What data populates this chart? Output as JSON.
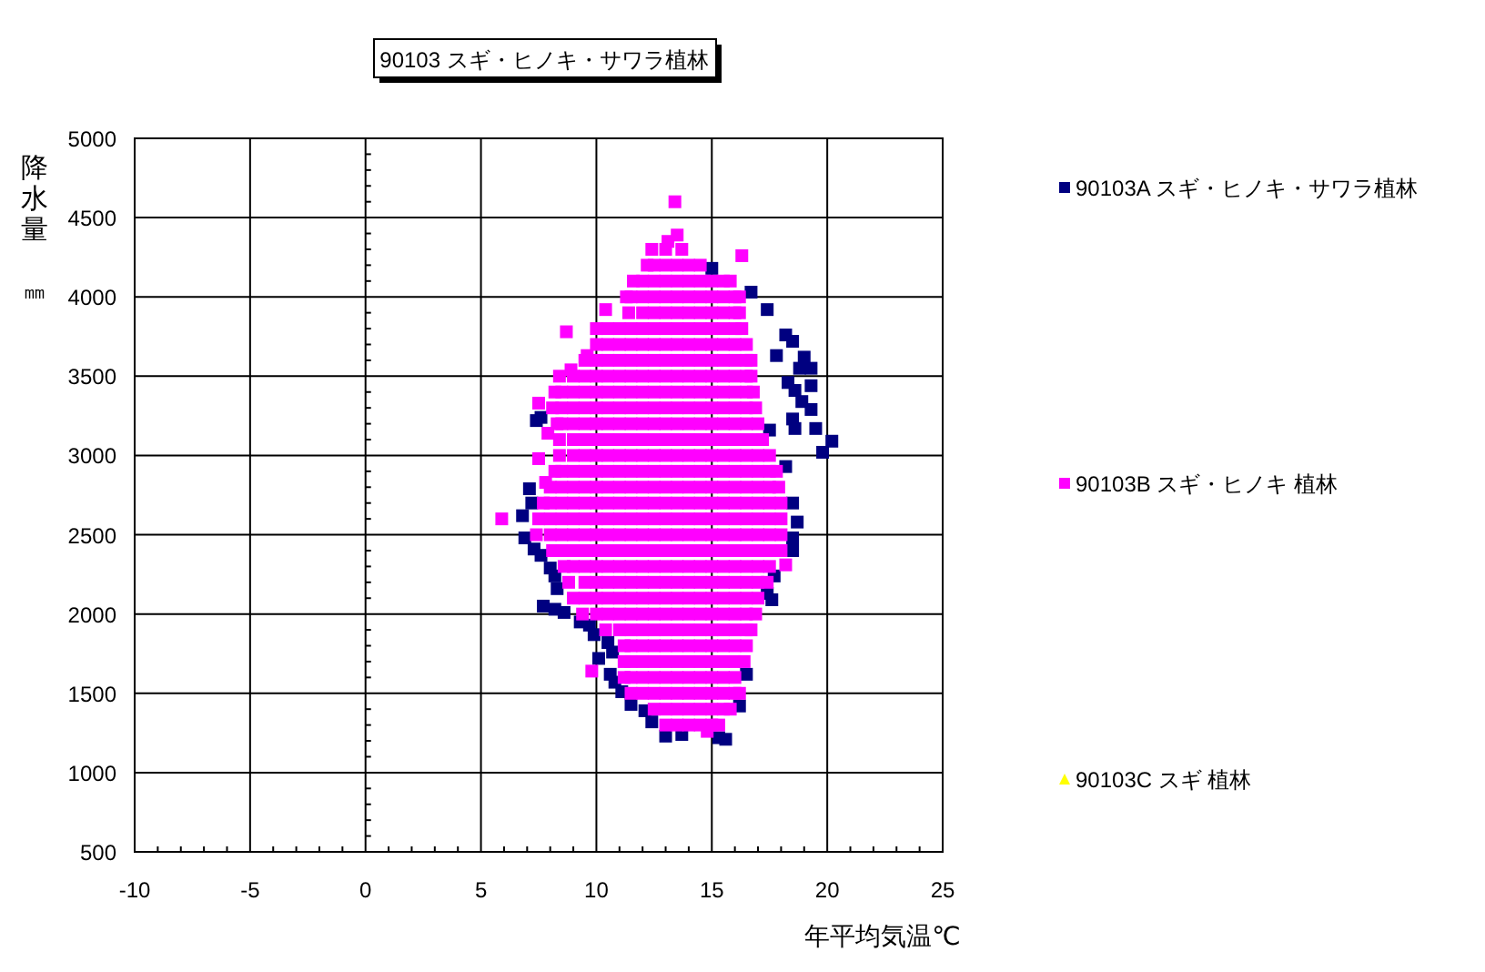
{
  "chart_data": {
    "type": "scatter",
    "title": "90103 スギ・ヒノキ・サワラ植林",
    "xlabel": "年平均気温℃",
    "ylabel": "降水量㎜",
    "xlim": [
      -10,
      25
    ],
    "ylim": [
      500,
      5000
    ],
    "xticks": [
      -10,
      -5,
      0,
      5,
      10,
      15,
      20,
      25
    ],
    "yticks": [
      500,
      1000,
      1500,
      2000,
      2500,
      3000,
      3500,
      4000,
      4500,
      5000
    ],
    "grid": true,
    "legend": "right",
    "series": [
      {
        "name": "90103A スギ・ヒノキ・サワラ植林",
        "color": "#000080",
        "marker": "square",
        "x": [
          15.0,
          16.7,
          17.4,
          18.2,
          18.5,
          17.8,
          19.0,
          19.3,
          18.8,
          18.3,
          18.6,
          19.3,
          18.9,
          19.3,
          18.5,
          18.6,
          19.5,
          20.2,
          19.8,
          17.5,
          18.2,
          18.5,
          18.7,
          18.5,
          18.5,
          17.7,
          17.4,
          17.6,
          16.5,
          16.2,
          15.6,
          15.3,
          13.7,
          13.0,
          12.4,
          12.1,
          11.5,
          11.1,
          10.8,
          10.6,
          10.1,
          10.7,
          10.5,
          9.9,
          9.7,
          9.3,
          8.6,
          8.2,
          7.7,
          8.3,
          8.2,
          8.0,
          7.6,
          7.3,
          6.9,
          6.8,
          7.2,
          7.1,
          7.4,
          7.6
        ],
        "values": [
          4180,
          4030,
          3920,
          3760,
          3720,
          3630,
          3620,
          3550,
          3550,
          3460,
          3410,
          3440,
          3340,
          3290,
          3230,
          3170,
          3170,
          3090,
          3020,
          3160,
          2930,
          2700,
          2580,
          2480,
          2400,
          2240,
          2130,
          2090,
          1620,
          1420,
          1210,
          1220,
          1240,
          1230,
          1320,
          1390,
          1430,
          1510,
          1570,
          1620,
          1720,
          1760,
          1820,
          1870,
          1930,
          1950,
          2010,
          2030,
          2050,
          2160,
          2240,
          2290,
          2370,
          2410,
          2480,
          2620,
          2700,
          2790,
          3220,
          3240
        ]
      },
      {
        "name": "90103B スギ・ヒノキ 植林",
        "color": "#ff00ff",
        "marker": "square",
        "x": [
          13.4,
          13.5,
          13.1,
          16.3,
          12.4,
          13,
          13.7,
          12.2,
          12.5,
          13,
          13.5,
          14,
          14.5,
          11.6,
          12,
          12.5,
          13,
          13.5,
          14,
          14.5,
          15,
          15.5,
          15.8,
          11.3,
          11.5,
          12,
          12.5,
          13,
          13.5,
          14,
          14.5,
          15,
          15.5,
          16,
          16.2,
          10.4,
          11.4,
          12,
          12.5,
          13,
          13.5,
          14,
          14.5,
          15,
          15.5,
          16,
          16.2,
          10,
          10.5,
          11,
          11.5,
          12,
          12.5,
          13,
          13.5,
          14,
          14.5,
          15,
          15.5,
          16,
          16.3,
          8.7,
          10,
          10.5,
          11,
          11.5,
          12,
          12.5,
          13,
          13.5,
          14,
          14.5,
          15,
          15.5,
          16,
          16.5,
          9.6,
          9.5,
          10,
          10.5,
          11,
          11.5,
          12,
          12.5,
          13,
          13.5,
          14,
          14.5,
          15,
          15.5,
          16,
          16.5,
          16.7,
          8.9,
          8.4,
          9,
          9.5,
          10,
          10.5,
          11,
          11.5,
          12,
          12.5,
          13,
          13.5,
          14,
          14.5,
          15,
          15.5,
          16,
          16.5,
          16.7,
          8.2,
          8.5,
          9,
          9.5,
          10,
          10.5,
          11,
          11.5,
          12,
          12.5,
          13,
          13.5,
          14,
          14.5,
          15,
          15.5,
          16,
          16.5,
          16.8,
          7.5,
          8.1,
          8.5,
          9,
          9.5,
          10,
          10.5,
          11,
          11.5,
          12,
          12.5,
          13,
          13.5,
          14,
          14.5,
          15,
          15.5,
          16,
          16.5,
          16.9,
          8.3,
          8.5,
          9,
          9.5,
          10,
          10.5,
          11,
          11.5,
          12,
          12.5,
          13,
          13.5,
          14,
          14.5,
          15,
          15.5,
          16,
          16.5,
          17,
          7.9,
          8.4,
          9,
          9.5,
          10,
          10.5,
          11,
          11.5,
          12,
          12.5,
          13,
          13.5,
          14,
          14.5,
          15,
          15.5,
          16,
          16.5,
          17,
          17.2,
          8.4,
          9,
          9.5,
          10,
          10.5,
          11,
          11.5,
          12,
          12.5,
          13,
          13.5,
          14,
          14.5,
          15,
          15.5,
          16,
          16.5,
          17,
          17.5,
          7.5,
          8.2,
          8.5,
          9,
          9.5,
          10,
          10.5,
          11,
          11.5,
          12,
          12.5,
          13,
          13.5,
          14,
          14.5,
          15,
          15.5,
          16,
          16.5,
          17,
          17.5,
          17.8,
          7.8,
          8,
          8.5,
          9,
          9.5,
          10,
          10.5,
          11,
          11.5,
          12,
          12.5,
          13,
          13.5,
          14,
          14.5,
          15,
          15.5,
          16,
          16.5,
          17,
          17.5,
          17.9,
          7.7,
          8,
          8.5,
          9,
          9.5,
          10,
          10.5,
          11,
          11.5,
          12,
          12.5,
          13,
          13.5,
          14,
          14.5,
          15,
          15.5,
          16,
          16.5,
          17,
          17.5,
          18,
          5.9,
          7.5,
          8,
          8.5,
          9,
          9.5,
          10,
          10.5,
          11,
          11.5,
          12,
          12.5,
          13,
          13.5,
          14,
          14.5,
          15,
          15.5,
          16,
          16.5,
          17,
          17.5,
          18,
          7.4,
          8,
          8.5,
          9,
          9.5,
          10,
          10.5,
          11,
          11.5,
          12,
          12.5,
          13,
          13.5,
          14,
          14.5,
          15,
          15.5,
          16,
          16.5,
          17,
          17.5,
          18,
          8.1,
          8.5,
          9,
          9.5,
          10,
          10.5,
          11,
          11.5,
          12,
          12.5,
          13,
          13.5,
          14,
          14.5,
          15,
          15.5,
          16,
          16.5,
          17,
          17.5,
          18,
          18.2,
          8.6,
          9,
          9.5,
          10,
          10.5,
          11,
          11.5,
          12,
          12.5,
          13,
          13.5,
          14,
          14.5,
          15,
          15.5,
          16,
          16.5,
          17,
          17.5,
          8.8,
          9.5,
          10,
          10.5,
          11,
          11.5,
          12,
          12.5,
          13,
          13.5,
          14,
          14.5,
          15,
          15.5,
          16,
          16.5,
          17,
          17.4,
          9,
          9.5,
          10,
          10.5,
          11,
          11.5,
          12,
          12.5,
          13,
          13.5,
          14,
          14.5,
          15,
          15.5,
          16,
          16.5,
          17,
          9.4,
          10,
          10.5,
          11,
          11.5,
          12,
          12.5,
          13,
          13.5,
          14,
          14.5,
          15,
          15.5,
          16,
          16.5,
          16.9,
          10.4,
          11,
          11.5,
          12,
          12.5,
          13,
          13.5,
          14,
          14.5,
          15,
          15.5,
          16,
          16.5,
          16.7,
          11.2,
          11.5,
          12,
          12.5,
          13,
          13.5,
          14,
          14.5,
          15,
          15.5,
          16,
          16.5,
          11.2,
          11.5,
          12,
          12.5,
          13,
          13.5,
          14,
          14.5,
          15,
          15.5,
          16,
          16.4,
          9.8,
          11.2,
          11.5,
          12,
          12.5,
          13,
          13.5,
          14,
          14.5,
          15,
          15.5,
          16,
          11.5,
          12,
          12.5,
          13,
          13.5,
          14,
          14.5,
          15,
          15.5,
          16,
          16.2,
          12.5,
          13,
          13.5,
          14,
          14.5,
          15,
          15.5,
          15.8,
          13,
          13.5,
          14,
          14.5,
          15,
          15.3,
          14.8
        ],
        "values": [
          4600,
          4390,
          4350,
          4260,
          4300,
          4300,
          4300,
          4200,
          4200,
          4200,
          4200,
          4200,
          4200,
          4100,
          4100,
          4100,
          4100,
          4100,
          4100,
          4100,
          4100,
          4100,
          4100,
          4000,
          4000,
          4000,
          4000,
          4000,
          4000,
          4000,
          4000,
          4000,
          4000,
          4000,
          4000,
          3920,
          3900,
          3900,
          3900,
          3900,
          3900,
          3900,
          3900,
          3900,
          3900,
          3900,
          3900,
          3800,
          3800,
          3800,
          3800,
          3800,
          3800,
          3800,
          3800,
          3800,
          3800,
          3800,
          3800,
          3800,
          3800,
          3780,
          3700,
          3700,
          3700,
          3700,
          3700,
          3700,
          3700,
          3700,
          3700,
          3700,
          3700,
          3700,
          3700,
          3700,
          3630,
          3600,
          3600,
          3600,
          3600,
          3600,
          3600,
          3600,
          3600,
          3600,
          3600,
          3600,
          3600,
          3600,
          3600,
          3600,
          3600,
          3540,
          3500,
          3500,
          3500,
          3500,
          3500,
          3500,
          3500,
          3500,
          3500,
          3500,
          3500,
          3500,
          3500,
          3500,
          3500,
          3500,
          3500,
          3500,
          3400,
          3400,
          3400,
          3400,
          3400,
          3400,
          3400,
          3400,
          3400,
          3400,
          3400,
          3400,
          3400,
          3400,
          3400,
          3400,
          3400,
          3400,
          3400,
          3330,
          3300,
          3300,
          3300,
          3300,
          3300,
          3300,
          3300,
          3300,
          3300,
          3300,
          3300,
          3300,
          3300,
          3300,
          3300,
          3300,
          3300,
          3300,
          3300,
          3200,
          3200,
          3200,
          3200,
          3200,
          3200,
          3200,
          3200,
          3200,
          3200,
          3200,
          3200,
          3200,
          3200,
          3200,
          3200,
          3200,
          3200,
          3200,
          3140,
          3100,
          3100,
          3100,
          3100,
          3100,
          3100,
          3100,
          3100,
          3100,
          3100,
          3100,
          3100,
          3100,
          3100,
          3100,
          3100,
          3100,
          3100,
          3100,
          3000,
          3000,
          3000,
          3000,
          3000,
          3000,
          3000,
          3000,
          3000,
          3000,
          3000,
          3000,
          3000,
          3000,
          3000,
          3000,
          3000,
          3000,
          3000,
          2980,
          2900,
          2900,
          2900,
          2900,
          2900,
          2900,
          2900,
          2900,
          2900,
          2900,
          2900,
          2900,
          2900,
          2900,
          2900,
          2900,
          2900,
          2900,
          2900,
          2900,
          2900,
          2830,
          2800,
          2800,
          2800,
          2800,
          2800,
          2800,
          2800,
          2800,
          2800,
          2800,
          2800,
          2800,
          2800,
          2800,
          2800,
          2800,
          2800,
          2800,
          2800,
          2800,
          2800,
          2700,
          2700,
          2700,
          2700,
          2700,
          2700,
          2700,
          2700,
          2700,
          2700,
          2700,
          2700,
          2700,
          2700,
          2700,
          2700,
          2700,
          2700,
          2700,
          2700,
          2700,
          2700,
          2600,
          2600,
          2600,
          2600,
          2600,
          2600,
          2600,
          2600,
          2600,
          2600,
          2600,
          2600,
          2600,
          2600,
          2600,
          2600,
          2600,
          2600,
          2600,
          2600,
          2600,
          2600,
          2600,
          2500,
          2500,
          2500,
          2500,
          2500,
          2500,
          2500,
          2500,
          2500,
          2500,
          2500,
          2500,
          2500,
          2500,
          2500,
          2500,
          2500,
          2500,
          2500,
          2500,
          2500,
          2500,
          2400,
          2400,
          2400,
          2400,
          2400,
          2400,
          2400,
          2400,
          2400,
          2400,
          2400,
          2400,
          2400,
          2400,
          2400,
          2400,
          2400,
          2400,
          2400,
          2400,
          2400,
          2310,
          2300,
          2300,
          2300,
          2300,
          2300,
          2300,
          2300,
          2300,
          2300,
          2300,
          2300,
          2300,
          2300,
          2300,
          2300,
          2300,
          2300,
          2300,
          2300,
          2200,
          2200,
          2200,
          2200,
          2200,
          2200,
          2200,
          2200,
          2200,
          2200,
          2200,
          2200,
          2200,
          2200,
          2200,
          2200,
          2200,
          2200,
          2100,
          2100,
          2100,
          2100,
          2100,
          2100,
          2100,
          2100,
          2100,
          2100,
          2100,
          2100,
          2100,
          2100,
          2100,
          2100,
          2100,
          2000,
          2000,
          2000,
          2000,
          2000,
          2000,
          2000,
          2000,
          2000,
          2000,
          2000,
          2000,
          2000,
          2000,
          2000,
          2000,
          1900,
          1900,
          1900,
          1900,
          1900,
          1900,
          1900,
          1900,
          1900,
          1900,
          1900,
          1900,
          1900,
          1900,
          1800,
          1800,
          1800,
          1800,
          1800,
          1800,
          1800,
          1800,
          1800,
          1800,
          1800,
          1800,
          1700,
          1700,
          1700,
          1700,
          1700,
          1700,
          1700,
          1700,
          1700,
          1700,
          1700,
          1700,
          1640,
          1600,
          1600,
          1600,
          1600,
          1600,
          1600,
          1600,
          1600,
          1600,
          1600,
          1600,
          1500,
          1500,
          1500,
          1500,
          1500,
          1500,
          1500,
          1500,
          1500,
          1500,
          1500,
          1400,
          1400,
          1400,
          1400,
          1400,
          1400,
          1400,
          1400,
          1300,
          1300,
          1300,
          1300,
          1300,
          1300,
          1260
        ]
      },
      {
        "name": "90103C スギ 植林",
        "color": "#ffff00",
        "marker": "triangle"
      }
    ]
  }
}
